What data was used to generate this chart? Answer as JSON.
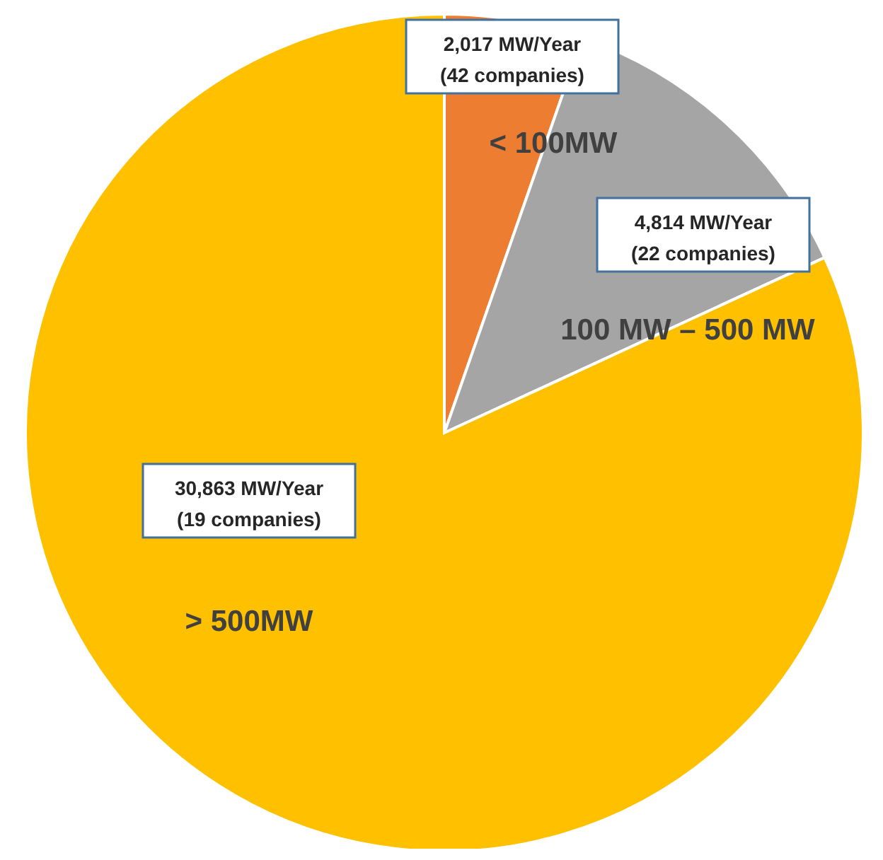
{
  "chart_data": {
    "type": "pie",
    "categories": [
      "< 100MW",
      "100 MW – 500 MW",
      "> 500MW"
    ],
    "values": [
      2017,
      4814,
      30863
    ],
    "colors": [
      "#ed7d31",
      "#a5a5a5",
      "#ffc000"
    ],
    "value_labels": [
      "2,017 MW/Year\n(42 companies)",
      "4,814 MW/Year\n(22 companies)",
      "30,863 MW/Year\n(19 companies)"
    ]
  }
}
